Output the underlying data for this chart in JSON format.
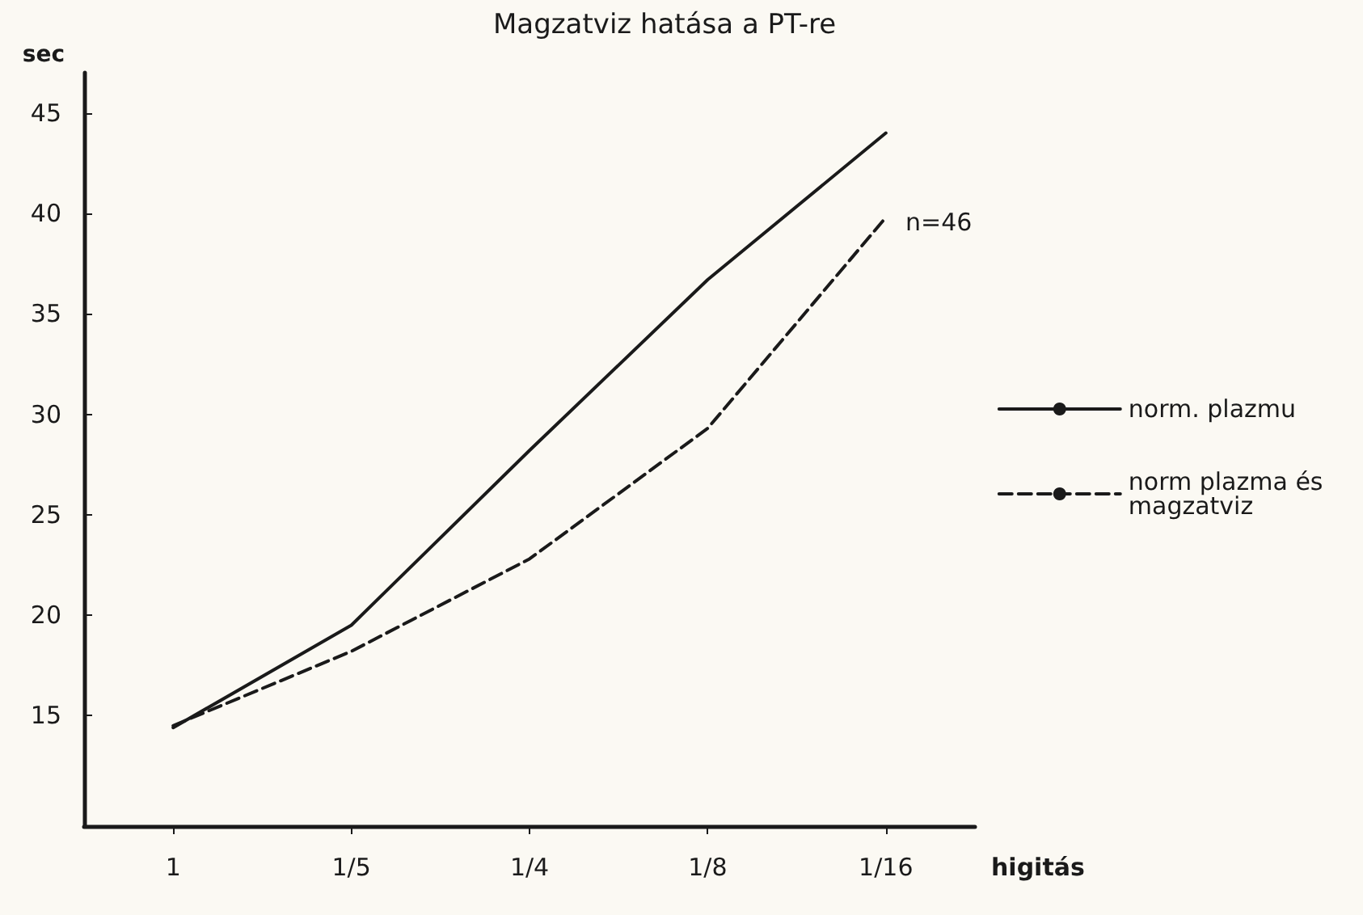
{
  "chart_data": {
    "type": "line",
    "title": "Magzatviz hatása a PT-re",
    "xlabel": "higitás",
    "ylabel": "sec",
    "categories": [
      "1",
      "1/5",
      "1/4",
      "1/8",
      "1/16"
    ],
    "series": [
      {
        "name": "norm. plazmu",
        "color": "#1a1a1a",
        "line_style": "solid",
        "values": [
          14.4,
          19.5,
          28.2,
          36.7,
          44
        ]
      },
      {
        "name": "norm plazma és magzatviz",
        "color": "#1a1a1a",
        "line_style": "dashed",
        "values": [
          14.5,
          18.2,
          22.8,
          29.3,
          39.8
        ]
      }
    ],
    "ylim": [
      9.5,
      47
    ],
    "yticks": [
      15,
      20,
      25,
      30,
      35,
      40,
      45
    ],
    "grid": false,
    "legend": "right",
    "annotations": [
      "n=46"
    ]
  }
}
